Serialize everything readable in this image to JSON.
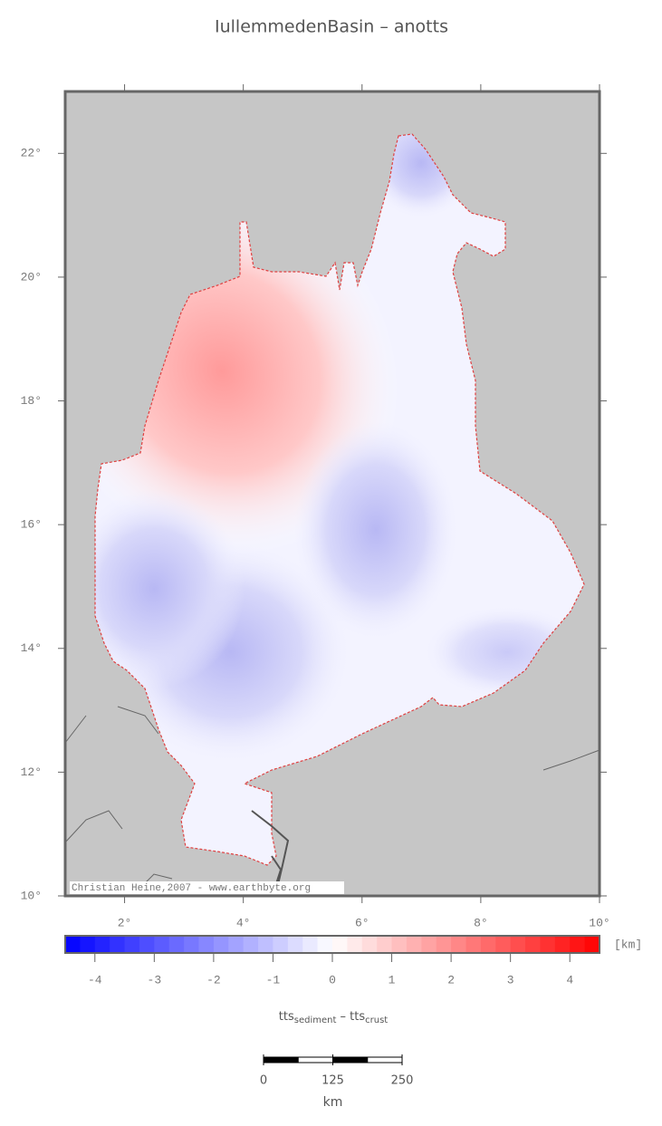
{
  "title": "IullemmedenBasin – anotts",
  "map": {
    "xlim": [
      1,
      10
    ],
    "ylim": [
      10,
      23
    ],
    "xticks": [
      {
        "value": 2,
        "label": "2°"
      },
      {
        "value": 4,
        "label": "4°"
      },
      {
        "value": 6,
        "label": "6°"
      },
      {
        "value": 8,
        "label": "8°"
      },
      {
        "value": 10,
        "label": "10°"
      }
    ],
    "yticks": [
      {
        "value": 10,
        "label": "10°"
      },
      {
        "value": 12,
        "label": "12°"
      },
      {
        "value": 14,
        "label": "14°"
      },
      {
        "value": 16,
        "label": "16°"
      },
      {
        "value": 18,
        "label": "18°"
      },
      {
        "value": 20,
        "label": "20°"
      },
      {
        "value": 22,
        "label": "22°"
      }
    ],
    "credit": "Christian Heine,2007 - www.earthbyte.org"
  },
  "colorbar": {
    "lim": [
      -4.5,
      4.5
    ],
    "ticks": [
      -4,
      -3,
      -2,
      -1,
      0,
      1,
      2,
      3,
      4
    ],
    "unit": "[km]",
    "label": {
      "base1": "tts",
      "sub1": "sediment",
      "base2": " – tts",
      "sub2": "crust"
    }
  },
  "scalebar": {
    "ticks": [
      0,
      125,
      250
    ],
    "unit": "km"
  }
}
